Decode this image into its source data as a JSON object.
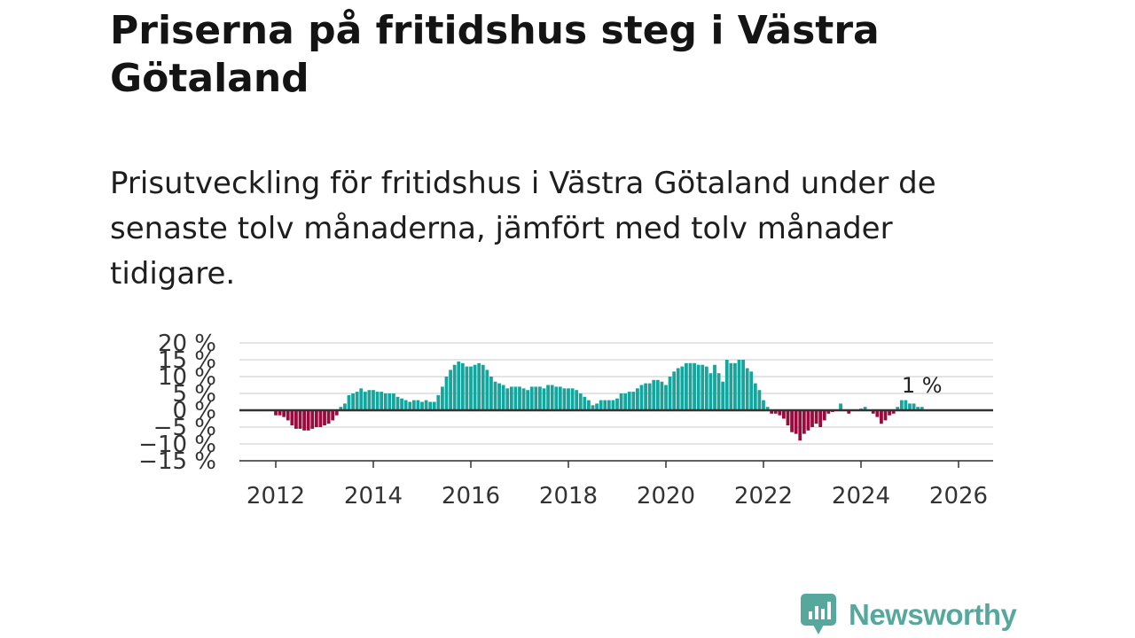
{
  "title": "Priserna på fritidshus steg i Västra Götaland",
  "subtitle": "Prisutveckling för fritidshus i Västra Götaland under de senaste tolv månaderna, jämfört med tolv månader tidigare.",
  "brand": {
    "name": "Newsworthy",
    "color": "#57a89c"
  },
  "colors": {
    "positive": "#16a59c",
    "negative": "#9b0a3c",
    "zero_line": "#333333",
    "grid": "#dcdcdc"
  },
  "chart_data": {
    "type": "bar",
    "title": "Priserna på fritidshus steg i Västra Götaland",
    "xlabel": "",
    "ylabel": "",
    "unit": "%",
    "x_start": {
      "year": 2012,
      "month": 1
    },
    "x_range": [
      2011.5,
      2026.75
    ],
    "ylim": [
      -15,
      20
    ],
    "yticks": [
      {
        "value": 20,
        "label": "20 %"
      },
      {
        "value": 15,
        "label": "15 %"
      },
      {
        "value": 10,
        "label": "10 %"
      },
      {
        "value": 5,
        "label": "5 %"
      },
      {
        "value": 0,
        "label": "0 %"
      },
      {
        "value": -5,
        "label": "−5 %"
      },
      {
        "value": -10,
        "label": "−10 %"
      },
      {
        "value": -15,
        "label": "−15 %"
      }
    ],
    "xticks": [
      {
        "value": 2012,
        "label": "2012"
      },
      {
        "value": 2014,
        "label": "2014"
      },
      {
        "value": 2016,
        "label": "2016"
      },
      {
        "value": 2018,
        "label": "2018"
      },
      {
        "value": 2020,
        "label": "2020"
      },
      {
        "value": 2022,
        "label": "2022"
      },
      {
        "value": 2024,
        "label": "2024"
      },
      {
        "value": 2026,
        "label": "2026"
      }
    ],
    "annotation": {
      "label": "1 %",
      "index": "last"
    },
    "values": [
      -1.5,
      -1.5,
      -2,
      -3,
      -4.5,
      -5.5,
      -5.5,
      -6,
      -6,
      -5.5,
      -5,
      -5,
      -4.5,
      -4,
      -3,
      -1.5,
      1,
      2,
      4.5,
      5,
      5.5,
      6.5,
      5.5,
      6,
      6,
      5.5,
      5.5,
      5,
      5,
      5,
      4,
      3.5,
      3,
      2.5,
      3,
      3,
      2.5,
      3,
      2.5,
      2.5,
      4.5,
      7,
      10,
      12,
      13.5,
      14.5,
      14,
      13,
      13,
      13.5,
      14,
      13.5,
      12,
      10,
      8.5,
      8,
      7.5,
      6.5,
      7,
      7,
      7,
      6.5,
      6,
      7,
      7,
      7,
      6.5,
      7.5,
      7.5,
      7,
      7,
      6.5,
      6.5,
      6.5,
      6,
      5,
      4,
      3,
      1.5,
      2,
      3,
      3,
      3,
      3,
      3.5,
      5,
      5,
      5.5,
      5.5,
      6.5,
      7.5,
      8,
      8,
      9,
      9,
      8.5,
      7.5,
      10,
      11.5,
      12.5,
      13,
      14,
      14,
      14,
      13.5,
      13.5,
      13,
      11,
      13.5,
      11,
      8.5,
      15,
      14,
      14,
      15,
      15,
      12.5,
      11.5,
      8,
      6,
      3,
      1,
      -1,
      -1,
      -1.5,
      -2.5,
      -4.5,
      -6.5,
      -7,
      -9,
      -7,
      -6,
      -5,
      -4,
      -5,
      -3,
      -1,
      -0.5,
      0,
      2,
      0,
      -1,
      0,
      0,
      0.5,
      1,
      0,
      -1,
      -2,
      -4,
      -3,
      -1.5,
      -1,
      1,
      3,
      3,
      2,
      2,
      1,
      1
    ]
  }
}
